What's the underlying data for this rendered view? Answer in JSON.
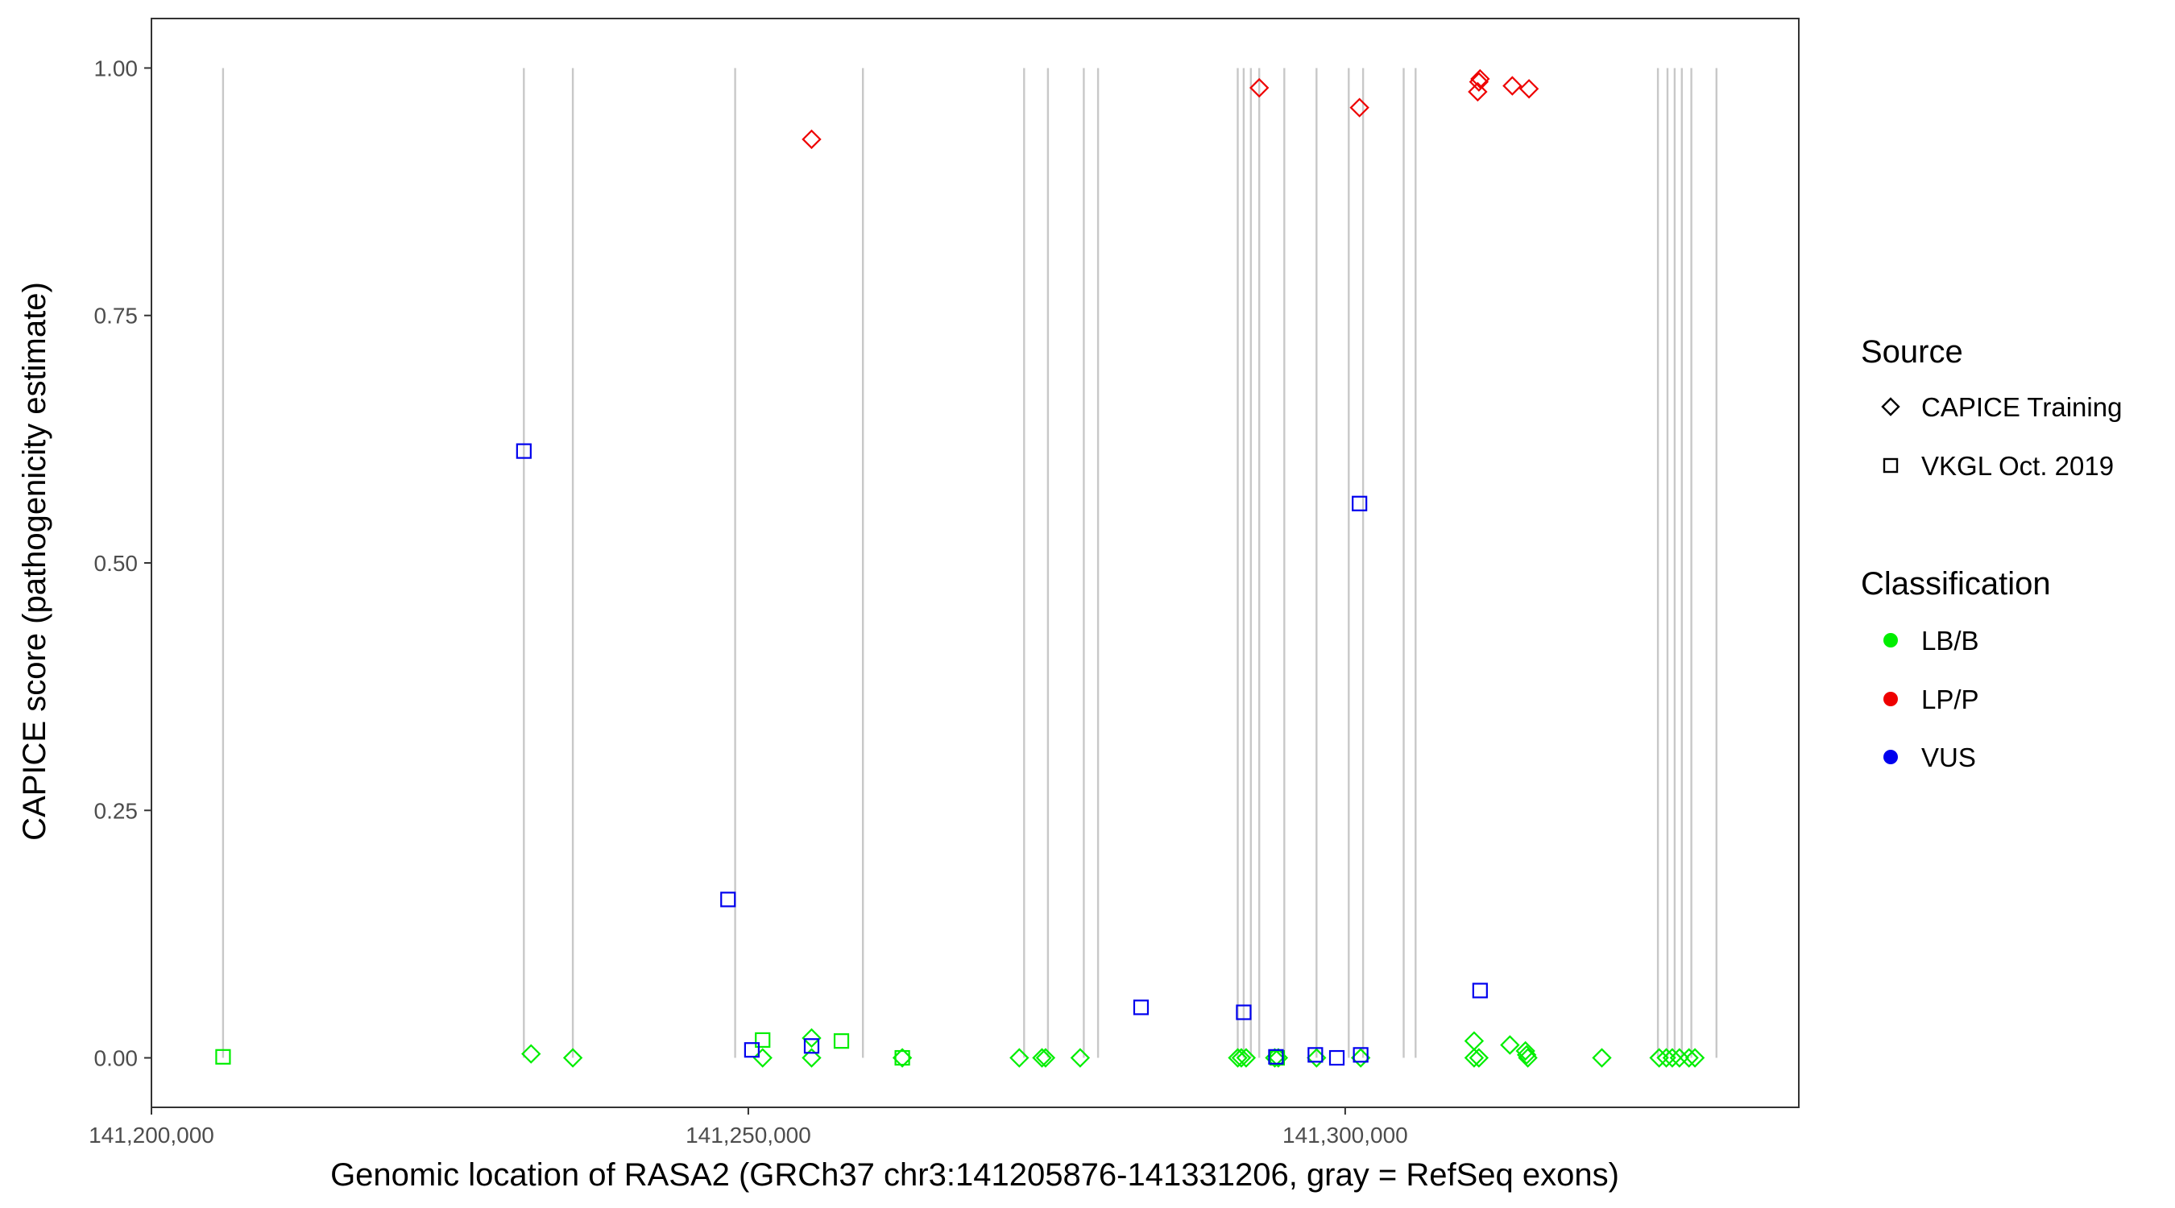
{
  "chart_data": {
    "type": "scatter",
    "xlabel": "Genomic location of RASA2 (GRCh37 chr3:141205876-141331206, gray = RefSeq exons)",
    "ylabel": "CAPICE score (pathogenicity estimate)",
    "xlim": [
      141200000,
      141338000
    ],
    "ylim": [
      -0.05,
      1.05
    ],
    "x_ticks": [
      141200000,
      141250000,
      141300000
    ],
    "x_tick_labels": [
      "141,200,000",
      "141,250,000",
      "141,300,000"
    ],
    "y_ticks": [
      0,
      0.25,
      0.5,
      0.75,
      1.0
    ],
    "y_tick_labels": [
      "0.00",
      "0.25",
      "0.50",
      "0.75",
      "1.00"
    ],
    "grid": false,
    "colors": {
      "LB/B": "#00ee00",
      "LP/P": "#ee0000",
      "VUS": "#0000ee",
      "exon": "#c8c8c8"
    },
    "exon_positions": [
      141206000,
      141231200,
      141235300,
      141248900,
      141259600,
      141273100,
      141275100,
      141278100,
      141279300,
      141291000,
      141291500,
      141292100,
      141292800,
      141294900,
      141297600,
      141300300,
      141301500,
      141304900,
      141305900,
      141326200,
      141327000,
      141327600,
      141328200,
      141329000,
      141331100
    ],
    "legend": {
      "source_title": "Source",
      "source_items": [
        {
          "label": "CAPICE Training",
          "shape": "diamond"
        },
        {
          "label": "VKGL Oct. 2019",
          "shape": "square"
        }
      ],
      "class_title": "Classification",
      "class_items": [
        {
          "label": "LB/B",
          "color": "#00ee00"
        },
        {
          "label": "LP/P",
          "color": "#ee0000"
        },
        {
          "label": "VUS",
          "color": "#0000ee"
        }
      ],
      "position": "right"
    },
    "series": [
      {
        "name": "CAPICE Training",
        "shape": "diamond",
        "points": [
          {
            "x": 141255300,
            "y": 0.928,
            "c": "LP/P"
          },
          {
            "x": 141292800,
            "y": 0.98,
            "c": "LP/P"
          },
          {
            "x": 141301200,
            "y": 0.96,
            "c": "LP/P"
          },
          {
            "x": 141311100,
            "y": 0.976,
            "c": "LP/P"
          },
          {
            "x": 141311200,
            "y": 0.986,
            "c": "LP/P"
          },
          {
            "x": 141311300,
            "y": 0.989,
            "c": "LP/P"
          },
          {
            "x": 141314000,
            "y": 0.982,
            "c": "LP/P"
          },
          {
            "x": 141315400,
            "y": 0.979,
            "c": "LP/P"
          },
          {
            "x": 141231800,
            "y": 0.004,
            "c": "LB/B"
          },
          {
            "x": 141235300,
            "y": 0.0,
            "c": "LB/B"
          },
          {
            "x": 141251200,
            "y": 0.0,
            "c": "LB/B"
          },
          {
            "x": 141255300,
            "y": 0.02,
            "c": "LB/B"
          },
          {
            "x": 141255300,
            "y": 0.0,
            "c": "LB/B"
          },
          {
            "x": 141262900,
            "y": 0.0,
            "c": "LB/B"
          },
          {
            "x": 141272700,
            "y": 0.0,
            "c": "LB/B"
          },
          {
            "x": 141274600,
            "y": 0.0,
            "c": "LB/B"
          },
          {
            "x": 141274900,
            "y": 0.0,
            "c": "LB/B"
          },
          {
            "x": 141277800,
            "y": 0.0,
            "c": "LB/B"
          },
          {
            "x": 141291000,
            "y": 0.0,
            "c": "LB/B"
          },
          {
            "x": 141291300,
            "y": 0.0,
            "c": "LB/B"
          },
          {
            "x": 141291700,
            "y": 0.0,
            "c": "LB/B"
          },
          {
            "x": 141294100,
            "y": 0.0,
            "c": "LB/B"
          },
          {
            "x": 141294400,
            "y": 0.0,
            "c": "LB/B"
          },
          {
            "x": 141297600,
            "y": 0.0,
            "c": "LB/B"
          },
          {
            "x": 141301300,
            "y": 0.0,
            "c": "LB/B"
          },
          {
            "x": 141310800,
            "y": 0.017,
            "c": "LB/B"
          },
          {
            "x": 141310800,
            "y": 0.0,
            "c": "LB/B"
          },
          {
            "x": 141311200,
            "y": 0.0,
            "c": "LB/B"
          },
          {
            "x": 141313800,
            "y": 0.013,
            "c": "LB/B"
          },
          {
            "x": 141315100,
            "y": 0.007,
            "c": "LB/B"
          },
          {
            "x": 141315200,
            "y": 0.003,
            "c": "LB/B"
          },
          {
            "x": 141315300,
            "y": 0.0,
            "c": "LB/B"
          },
          {
            "x": 141321500,
            "y": 0.0,
            "c": "LB/B"
          },
          {
            "x": 141326300,
            "y": 0.0,
            "c": "LB/B"
          },
          {
            "x": 141326900,
            "y": 0.0,
            "c": "LB/B"
          },
          {
            "x": 141327400,
            "y": 0.0,
            "c": "LB/B"
          },
          {
            "x": 141328000,
            "y": 0.0,
            "c": "LB/B"
          },
          {
            "x": 141328800,
            "y": 0.0,
            "c": "LB/B"
          },
          {
            "x": 141329300,
            "y": 0.0,
            "c": "LB/B"
          }
        ]
      },
      {
        "name": "VKGL Oct. 2019",
        "shape": "square",
        "points": [
          {
            "x": 141206000,
            "y": 0.001,
            "c": "LB/B"
          },
          {
            "x": 141251200,
            "y": 0.018,
            "c": "LB/B"
          },
          {
            "x": 141257800,
            "y": 0.017,
            "c": "LB/B"
          },
          {
            "x": 141262900,
            "y": 0.0,
            "c": "LB/B"
          },
          {
            "x": 141294300,
            "y": 0.0,
            "c": "LB/B"
          },
          {
            "x": 141231200,
            "y": 0.613,
            "c": "VUS"
          },
          {
            "x": 141248300,
            "y": 0.16,
            "c": "VUS"
          },
          {
            "x": 141250300,
            "y": 0.008,
            "c": "VUS"
          },
          {
            "x": 141255300,
            "y": 0.012,
            "c": "VUS"
          },
          {
            "x": 141282900,
            "y": 0.051,
            "c": "VUS"
          },
          {
            "x": 141291500,
            "y": 0.046,
            "c": "VUS"
          },
          {
            "x": 141294200,
            "y": 0.001,
            "c": "VUS"
          },
          {
            "x": 141297500,
            "y": 0.003,
            "c": "VUS"
          },
          {
            "x": 141299300,
            "y": 0.0,
            "c": "VUS"
          },
          {
            "x": 141301200,
            "y": 0.56,
            "c": "VUS"
          },
          {
            "x": 141301300,
            "y": 0.003,
            "c": "VUS"
          },
          {
            "x": 141311300,
            "y": 0.068,
            "c": "VUS"
          }
        ]
      }
    ]
  }
}
